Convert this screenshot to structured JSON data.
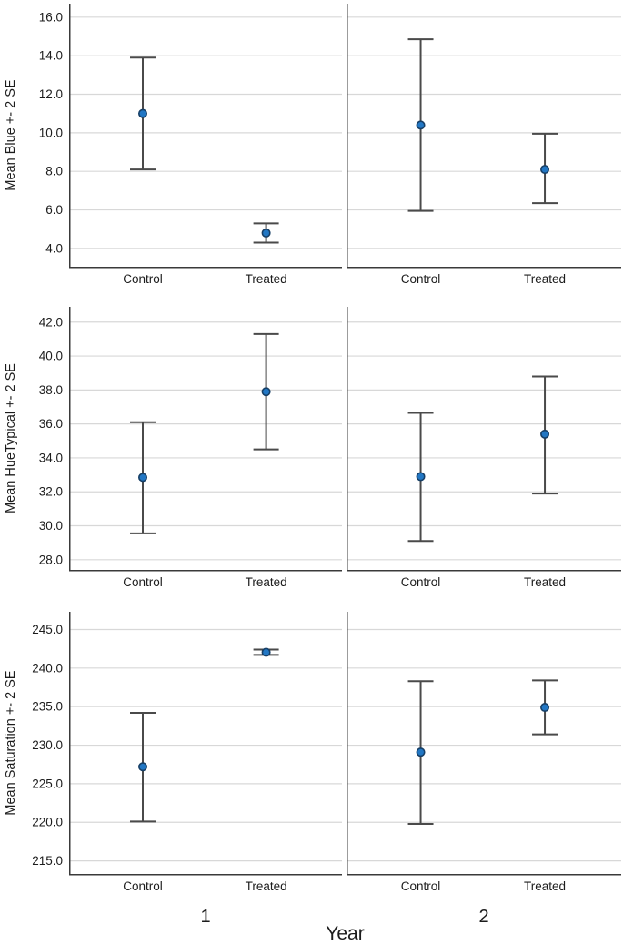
{
  "figure": {
    "x_axis_title": "Year",
    "categories": [
      "Control",
      "Treated"
    ],
    "facet_labels": [
      "1",
      "2"
    ],
    "row_axis_titles": [
      "Mean Blue +- 2 SE",
      "Mean HueTypical +- 2 SE",
      "Mean Saturation +- 2 SE"
    ],
    "colors": {
      "background": "#ffffff",
      "gridline": "#d8d8d8",
      "axis_line": "#3a3a3a",
      "error_bar": "#4a4a4a",
      "dot_fill": "#2277c4",
      "dot_stroke": "#173f66",
      "text": "#1c1c1c"
    }
  },
  "chart_data": [
    {
      "type": "errorbar",
      "row": 0,
      "col": 0,
      "facet": "1",
      "ylabel": "Mean Blue +- 2 SE",
      "ylim": [
        3.05,
        16.7
      ],
      "yticks": [
        4.0,
        6.0,
        8.0,
        10.0,
        12.0,
        14.0,
        16.0
      ],
      "ytick_labels": [
        "4.0",
        "6.0",
        "8.0",
        "10.0",
        "12.0",
        "14.0",
        "16.0"
      ],
      "grid": true,
      "categories": [
        "Control",
        "Treated"
      ],
      "points": [
        {
          "category": "Control",
          "mean": 11.0,
          "lower": 8.1,
          "upper": 13.9
        },
        {
          "category": "Treated",
          "mean": 4.8,
          "lower": 4.3,
          "upper": 5.3
        }
      ]
    },
    {
      "type": "errorbar",
      "row": 0,
      "col": 1,
      "facet": "2",
      "ylabel": "",
      "ylim": [
        3.05,
        16.7
      ],
      "yticks": [
        4.0,
        6.0,
        8.0,
        10.0,
        12.0,
        14.0,
        16.0
      ],
      "ytick_labels": [],
      "grid": true,
      "categories": [
        "Control",
        "Treated"
      ],
      "points": [
        {
          "category": "Control",
          "mean": 10.4,
          "lower": 5.95,
          "upper": 14.85
        },
        {
          "category": "Treated",
          "mean": 8.1,
          "lower": 6.35,
          "upper": 9.95
        }
      ]
    },
    {
      "type": "errorbar",
      "row": 1,
      "col": 0,
      "facet": "1",
      "ylabel": "Mean HueTypical +- 2 SE",
      "ylim": [
        27.4,
        42.9
      ],
      "yticks": [
        28.0,
        30.0,
        32.0,
        34.0,
        36.0,
        38.0,
        40.0,
        42.0
      ],
      "ytick_labels": [
        "28.0",
        "30.0",
        "32.0",
        "34.0",
        "36.0",
        "38.0",
        "40.0",
        "42.0"
      ],
      "grid": true,
      "categories": [
        "Control",
        "Treated"
      ],
      "points": [
        {
          "category": "Control",
          "mean": 32.85,
          "lower": 29.55,
          "upper": 36.1
        },
        {
          "category": "Treated",
          "mean": 37.9,
          "lower": 34.5,
          "upper": 41.3
        }
      ]
    },
    {
      "type": "errorbar",
      "row": 1,
      "col": 1,
      "facet": "2",
      "ylabel": "",
      "ylim": [
        27.4,
        42.9
      ],
      "yticks": [
        28.0,
        30.0,
        32.0,
        34.0,
        36.0,
        38.0,
        40.0,
        42.0
      ],
      "ytick_labels": [],
      "grid": true,
      "categories": [
        "Control",
        "Treated"
      ],
      "points": [
        {
          "category": "Control",
          "mean": 32.9,
          "lower": 29.1,
          "upper": 36.65
        },
        {
          "category": "Treated",
          "mean": 35.4,
          "lower": 31.9,
          "upper": 38.8
        }
      ]
    },
    {
      "type": "errorbar",
      "row": 2,
      "col": 0,
      "facet": "1",
      "ylabel": "Mean Saturation +- 2 SE",
      "ylim": [
        213.3,
        247.3
      ],
      "yticks": [
        215.0,
        220.0,
        225.0,
        230.0,
        235.0,
        240.0,
        245.0
      ],
      "ytick_labels": [
        "215.0",
        "220.0",
        "225.0",
        "230.0",
        "235.0",
        "240.0",
        "245.0"
      ],
      "grid": true,
      "categories": [
        "Control",
        "Treated"
      ],
      "points": [
        {
          "category": "Control",
          "mean": 227.2,
          "lower": 220.1,
          "upper": 234.2
        },
        {
          "category": "Treated",
          "mean": 242.05,
          "lower": 241.7,
          "upper": 242.4
        }
      ]
    },
    {
      "type": "errorbar",
      "row": 2,
      "col": 1,
      "facet": "2",
      "ylabel": "",
      "ylim": [
        213.3,
        247.3
      ],
      "yticks": [
        215.0,
        220.0,
        225.0,
        230.0,
        235.0,
        240.0,
        245.0
      ],
      "ytick_labels": [],
      "grid": true,
      "categories": [
        "Control",
        "Treated"
      ],
      "points": [
        {
          "category": "Control",
          "mean": 229.1,
          "lower": 219.8,
          "upper": 238.3
        },
        {
          "category": "Treated",
          "mean": 234.9,
          "lower": 231.4,
          "upper": 238.4
        }
      ]
    }
  ]
}
